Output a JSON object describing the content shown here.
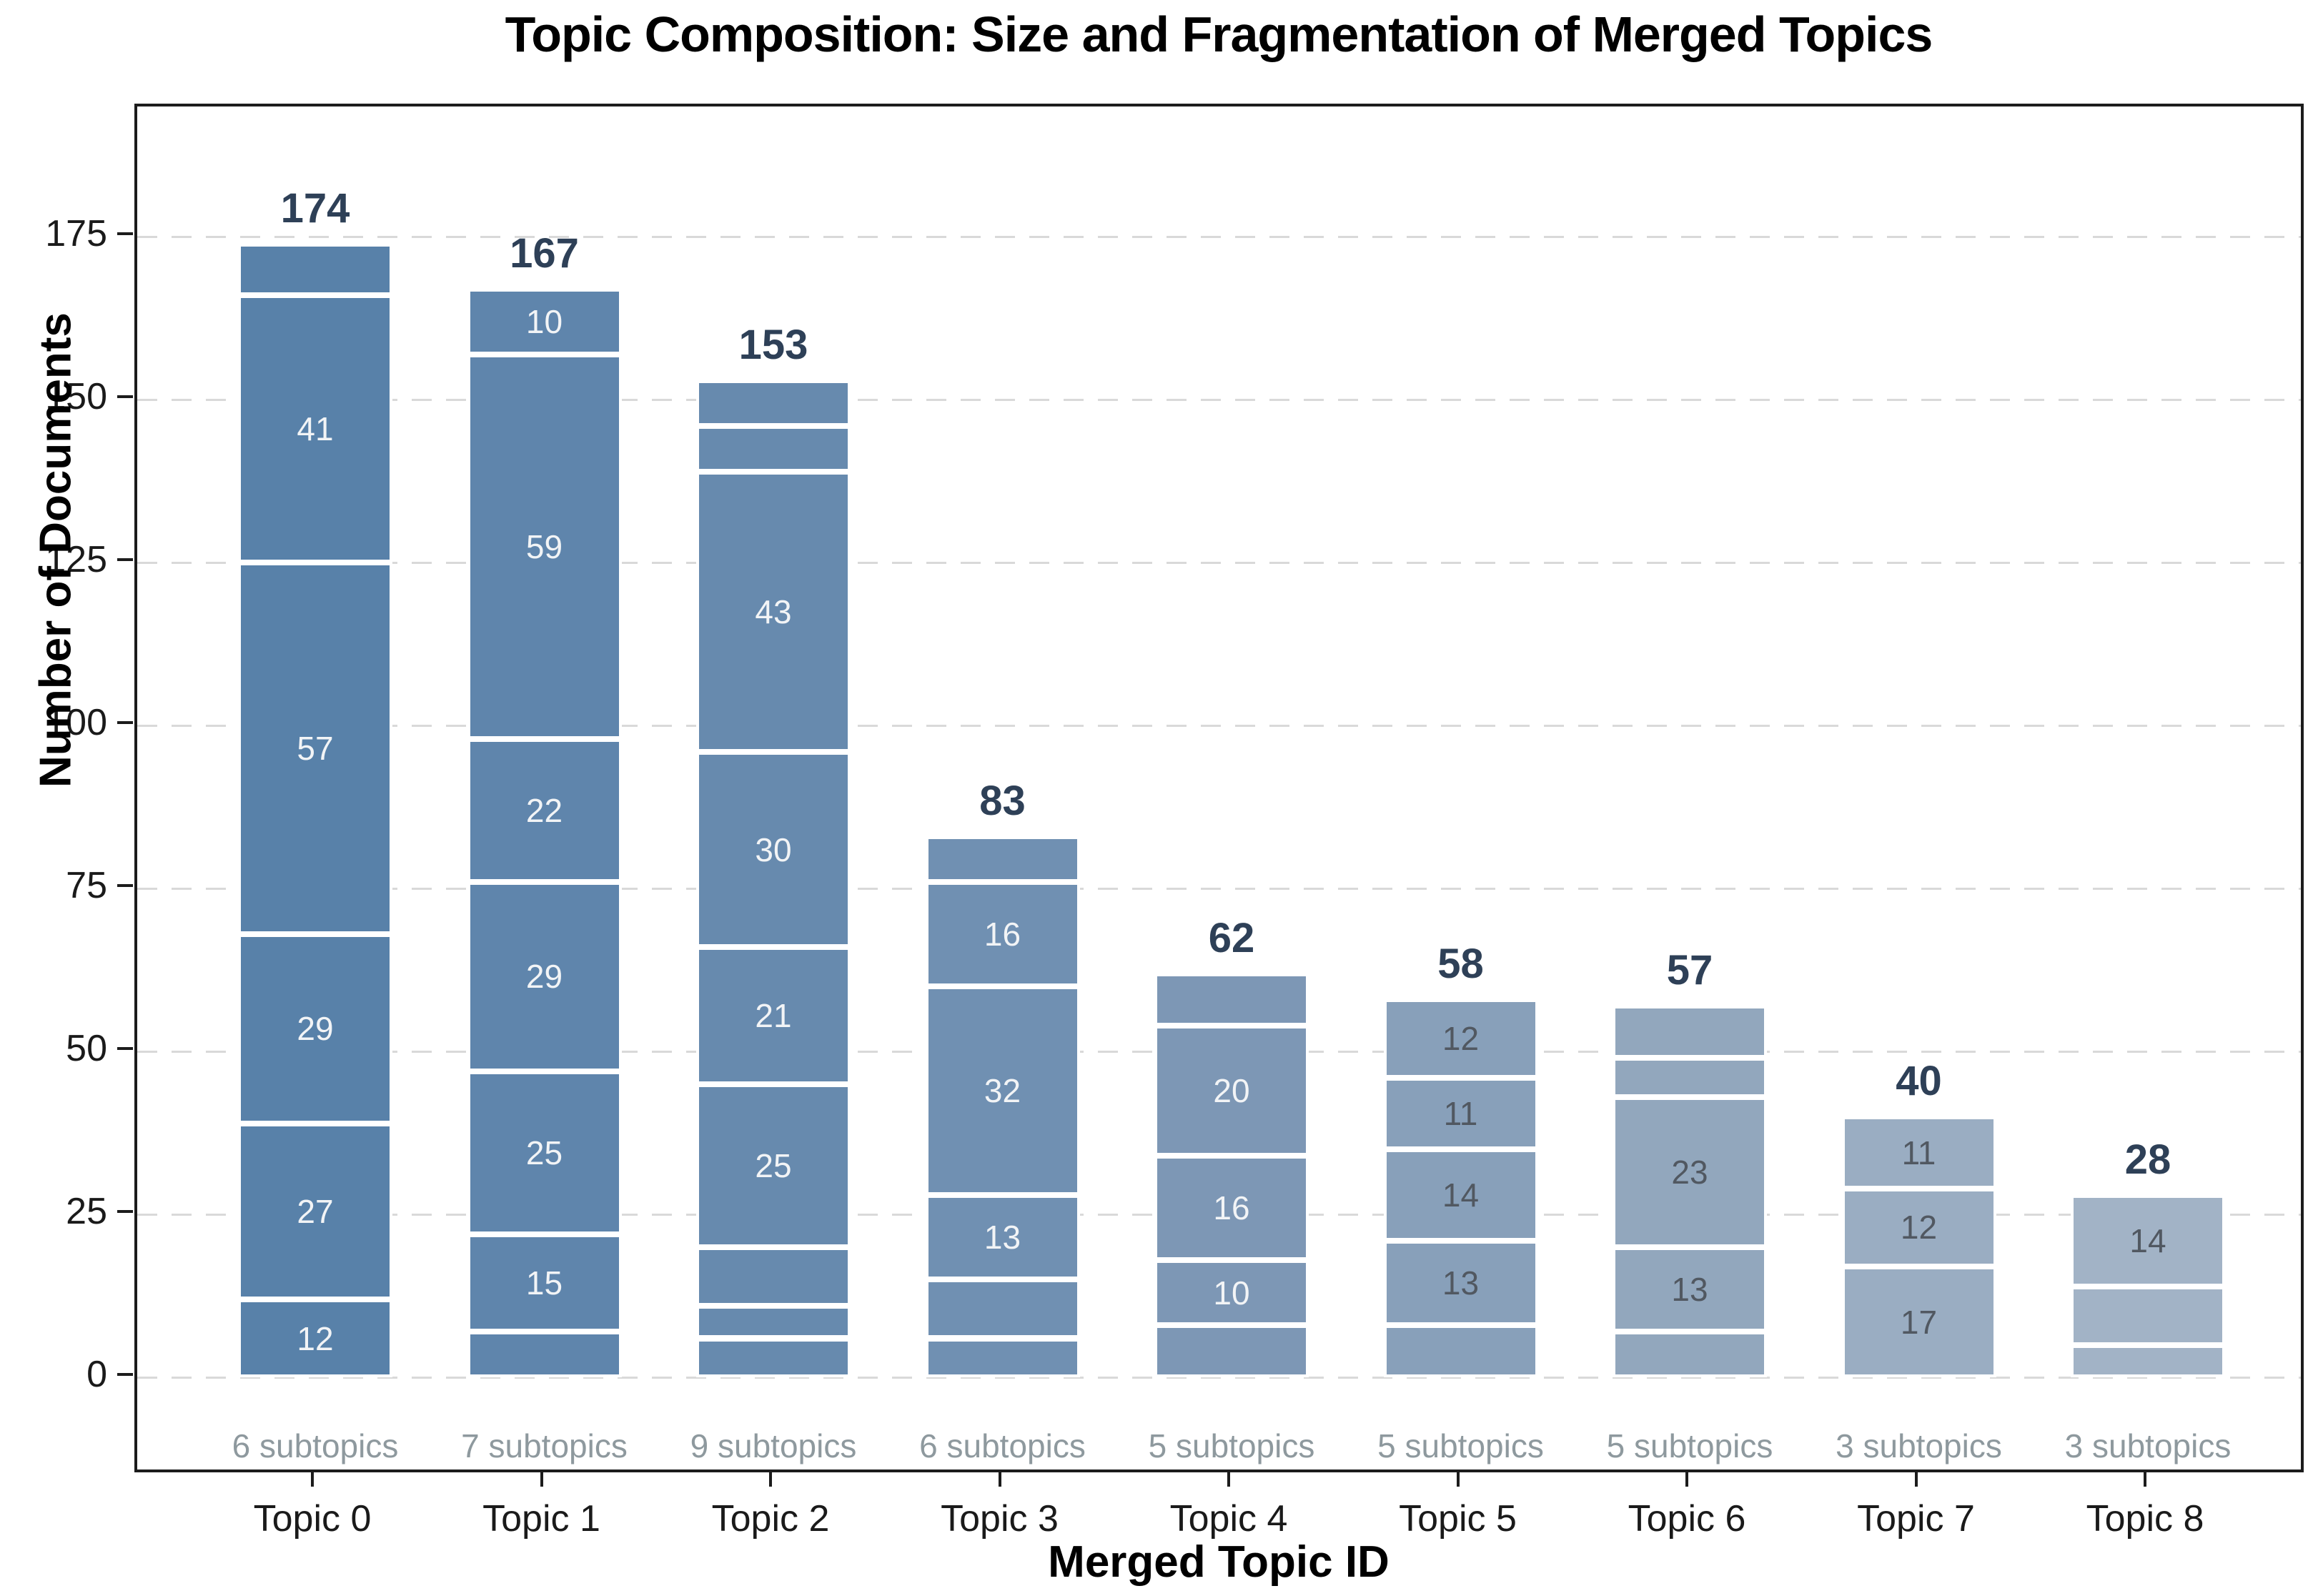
{
  "title": "Topic Composition: Size and Fragmentation of Merged Topics",
  "xlabel": "Merged Topic ID",
  "ylabel": "Number of Documents",
  "chart_data": {
    "type": "bar",
    "stacked": true,
    "title": "Topic Composition: Size and Fragmentation of Merged Topics",
    "xlabel": "Merged Topic ID",
    "ylabel": "Number of Documents",
    "ylim": [
      -15,
      195
    ],
    "yticks": [
      0,
      25,
      50,
      75,
      100,
      125,
      150,
      175
    ],
    "grid": "horizontal-dashed",
    "legend": "none",
    "segment_label_min": 10,
    "categories": [
      "Topic 0",
      "Topic 1",
      "Topic 2",
      "Topic 3",
      "Topic 4",
      "Topic 5",
      "Topic 6",
      "Topic 7",
      "Topic 8"
    ],
    "totals": [
      174,
      167,
      153,
      83,
      62,
      58,
      57,
      40,
      28
    ],
    "subtopic_annotations": [
      "6 subtopics",
      "7 subtopics",
      "9 subtopics",
      "6 subtopics",
      "5 subtopics",
      "5 subtopics",
      "5 subtopics",
      "3 subtopics",
      "3 subtopics"
    ],
    "bars": [
      {
        "category": "Topic 0",
        "total": 174,
        "subtopics": 6,
        "color": "#5881a9",
        "label_color": "#f2f4f6",
        "segments_bottom_to_top": [
          12,
          27,
          29,
          57,
          41,
          8
        ]
      },
      {
        "category": "Topic 1",
        "total": 167,
        "subtopics": 7,
        "color": "#5f85ac",
        "label_color": "#f2f4f6",
        "segments_bottom_to_top": [
          7,
          15,
          25,
          29,
          22,
          59,
          10
        ]
      },
      {
        "category": "Topic 2",
        "total": 153,
        "subtopics": 9,
        "color": "#678aae",
        "label_color": "#f2f4f6",
        "segments_bottom_to_top": [
          6,
          5,
          9,
          25,
          21,
          30,
          43,
          7,
          7
        ]
      },
      {
        "category": "Topic 3",
        "total": 83,
        "subtopics": 6,
        "color": "#7090b2",
        "label_color": "#f2f4f6",
        "segments_bottom_to_top": [
          6,
          9,
          13,
          32,
          16,
          7
        ]
      },
      {
        "category": "Topic 4",
        "total": 62,
        "subtopics": 5,
        "color": "#7d97b5",
        "label_color": "#f2f4f6",
        "segments_bottom_to_top": [
          8,
          10,
          16,
          20,
          8
        ]
      },
      {
        "category": "Topic 5",
        "total": 58,
        "subtopics": 5,
        "color": "#88a0ba",
        "label_color": "#515861",
        "segments_bottom_to_top": [
          8,
          13,
          14,
          11,
          12
        ]
      },
      {
        "category": "Topic 6",
        "total": 57,
        "subtopics": 5,
        "color": "#92a7bd",
        "label_color": "#515861",
        "segments_bottom_to_top": [
          7,
          13,
          23,
          6,
          8
        ]
      },
      {
        "category": "Topic 7",
        "total": 40,
        "subtopics": 3,
        "color": "#9aadc2",
        "label_color": "#515861",
        "segments_bottom_to_top": [
          17,
          12,
          11
        ]
      },
      {
        "category": "Topic 8",
        "total": 28,
        "subtopics": 3,
        "color": "#a2b3c6",
        "label_color": "#515861",
        "segments_bottom_to_top": [
          5,
          9,
          14
        ]
      }
    ],
    "colors": {
      "total_label": "#2e4057",
      "subtopic_annotation": "#8e999e",
      "axis_text": "#1a1a1a",
      "gridline": "#d9d9d9",
      "spine": "#1c1c1c",
      "segment_edge": "#ffffff"
    }
  }
}
